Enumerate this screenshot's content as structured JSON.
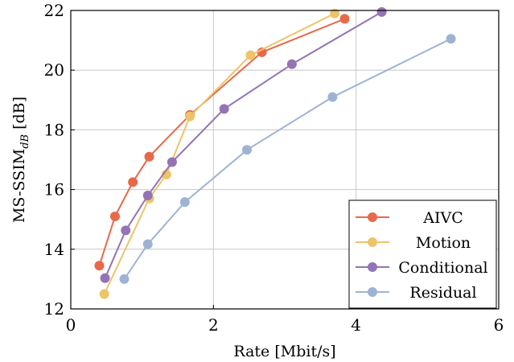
{
  "chart_data": {
    "type": "line",
    "title": "",
    "xlabel": "Rate [Mbit/s]",
    "ylabel_main": "MS-SSIM",
    "ylabel_sub": "dB",
    "ylabel_unit": "[dB]",
    "xlim": [
      0,
      6
    ],
    "ylim": [
      12,
      22
    ],
    "xticks": [
      0,
      2,
      4,
      6
    ],
    "yticks": [
      12,
      14,
      16,
      18,
      20,
      22
    ],
    "grid": true,
    "legend_position": "bottom-right",
    "series": [
      {
        "name": "AIVC",
        "color": "#e8694a",
        "x": [
          0.4,
          0.62,
          0.87,
          1.1,
          1.67,
          2.68,
          3.84
        ],
        "y": [
          13.45,
          15.1,
          16.25,
          17.1,
          18.5,
          20.6,
          21.72
        ]
      },
      {
        "name": "Motion",
        "color": "#eec46a",
        "x": [
          0.47,
          1.1,
          1.34,
          1.67,
          2.52,
          3.7
        ],
        "y": [
          12.5,
          15.7,
          16.5,
          18.45,
          20.5,
          21.9
        ]
      },
      {
        "name": "Conditional",
        "color": "#9474b4",
        "x": [
          0.48,
          0.77,
          1.08,
          1.42,
          2.15,
          3.1,
          4.36
        ],
        "y": [
          13.03,
          14.63,
          15.8,
          16.92,
          18.7,
          20.2,
          21.95
        ]
      },
      {
        "name": "Residual",
        "color": "#9eb3d4",
        "x": [
          0.75,
          1.08,
          1.6,
          2.47,
          3.67,
          5.33
        ],
        "y": [
          13.0,
          14.17,
          15.58,
          17.33,
          19.1,
          21.05
        ]
      }
    ]
  }
}
